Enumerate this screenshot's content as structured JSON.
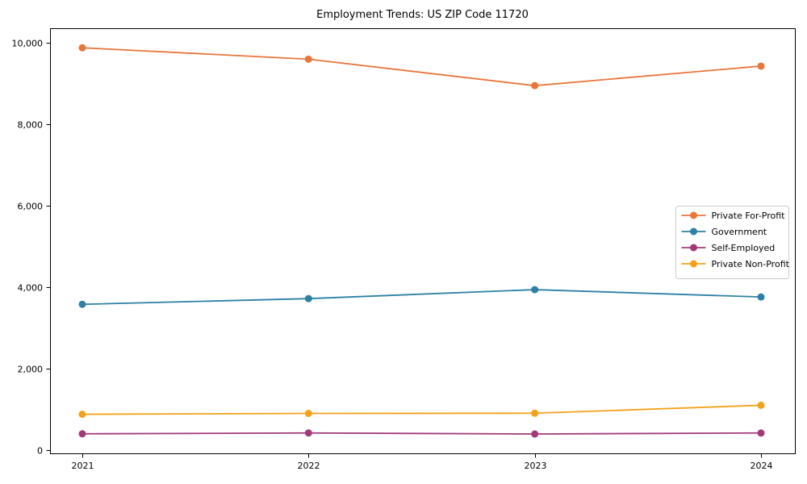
{
  "chart_data": {
    "type": "line",
    "title": "Employment Trends: US ZIP Code 11720",
    "xlabel": "",
    "ylabel": "",
    "x": [
      "2021",
      "2022",
      "2023",
      "2024"
    ],
    "series": [
      {
        "name": "Private For-Profit",
        "color": "#e8763b",
        "values": [
          9880,
          9600,
          8950,
          9430
        ]
      },
      {
        "name": "Government",
        "color": "#2e80a5",
        "values": [
          3580,
          3720,
          3940,
          3760
        ]
      },
      {
        "name": "Self-Employed",
        "color": "#a23a7a",
        "values": [
          400,
          420,
          395,
          420
        ]
      },
      {
        "name": "Private Non-Profit",
        "color": "#f2a21a",
        "values": [
          880,
          900,
          905,
          1100
        ]
      }
    ],
    "ylim": [
      -80,
      10360
    ],
    "yticks": [
      0,
      2000,
      4000,
      6000,
      8000,
      10000
    ],
    "ytick_labels": [
      "0",
      "2,000",
      "4,000",
      "6,000",
      "8,000",
      "10,000"
    ],
    "grid": false,
    "marker": "circle",
    "legend_position": "right-middle",
    "legend_border_color": "#cccccc",
    "axis_color": "#000000",
    "background_color": "#ffffff"
  }
}
